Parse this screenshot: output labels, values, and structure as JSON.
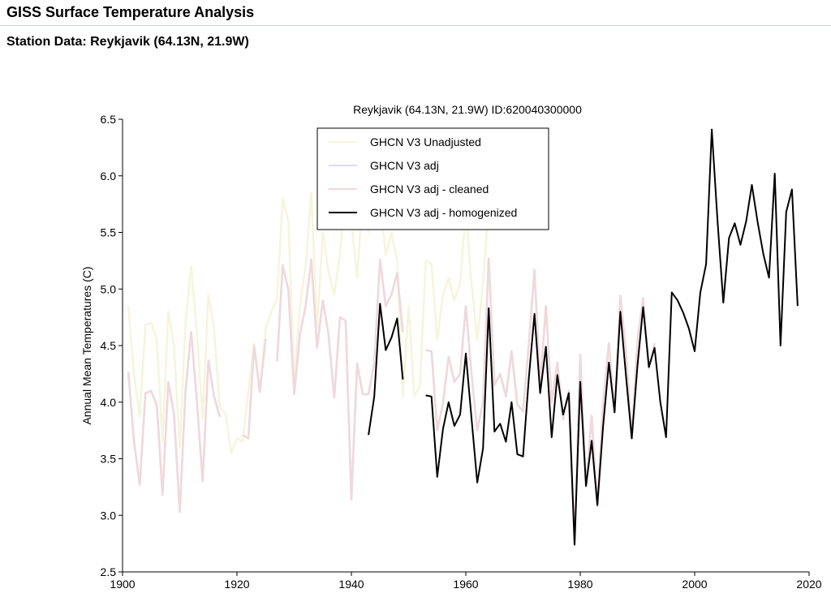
{
  "page": {
    "title": "GISS Surface Temperature Analysis",
    "subtitle": "Station Data: Reykjavik (64.13N, 21.9W)"
  },
  "chart_data": {
    "type": "line",
    "title": "Reykjavik (64.13N, 21.9W) ID:620040300000",
    "xlabel": "",
    "ylabel": "Annual Mean Temperatures (C)",
    "xlim": [
      1900,
      2020
    ],
    "ylim": [
      2.5,
      6.5
    ],
    "xticks": [
      "1900",
      "1920",
      "1940",
      "1960",
      "1980",
      "2000",
      "2020"
    ],
    "yticks": [
      "2.5",
      "3.0",
      "3.5",
      "4.0",
      "4.5",
      "5.0",
      "5.5",
      "6.0",
      "6.5"
    ],
    "grid": false,
    "legend_position": "top-center",
    "series": [
      {
        "name": "GHCN V3 Unadjusted",
        "color": "#f5f5dc",
        "values": [
          [
            1901,
            4.85
          ],
          [
            1902,
            4.25
          ],
          [
            1903,
            3.87
          ],
          [
            1904,
            4.68
          ],
          [
            1905,
            4.7
          ],
          [
            1906,
            4.55
          ],
          [
            1907,
            3.65
          ],
          [
            1908,
            4.8
          ],
          [
            1909,
            4.5
          ],
          [
            1910,
            3.6
          ],
          [
            1911,
            4.7
          ],
          [
            1912,
            5.2
          ],
          [
            1913,
            4.6
          ],
          [
            1914,
            3.85
          ],
          [
            1915,
            4.95
          ],
          [
            1916,
            4.65
          ],
          [
            1917,
            3.95
          ],
          [
            1918,
            3.9
          ],
          [
            1919,
            3.55
          ],
          [
            1920,
            3.68
          ],
          [
            1921,
            3.65
          ],
          [
            1922,
            4.1
          ],
          [
            1923,
            4.52
          ],
          [
            1924,
            4.1
          ],
          [
            1925,
            4.65
          ],
          [
            1926,
            4.8
          ],
          [
            1927,
            4.92
          ],
          [
            1928,
            5.8
          ],
          [
            1929,
            5.6
          ],
          [
            1930,
            4.2
          ],
          [
            1931,
            4.85
          ],
          [
            1932,
            5.2
          ],
          [
            1933,
            5.85
          ],
          [
            1934,
            4.65
          ],
          [
            1935,
            5.5
          ],
          [
            1936,
            5.15
          ],
          [
            1937,
            4.95
          ],
          [
            1938,
            5.3
          ],
          [
            1939,
            5.9
          ],
          [
            1940,
            5.6
          ],
          [
            1941,
            5.1
          ],
          [
            1942,
            5.85
          ],
          [
            1943,
            5.5
          ],
          [
            1944,
            5.85
          ],
          [
            1945,
            5.8
          ],
          [
            1946,
            5.3
          ],
          [
            1947,
            5.5
          ],
          [
            1948,
            5.25
          ],
          [
            1949,
            4.05
          ],
          [
            1950,
            4.85
          ],
          [
            1951,
            4.05
          ],
          [
            1952,
            4.15
          ],
          [
            1953,
            5.25
          ],
          [
            1954,
            5.22
          ],
          [
            1955,
            4.55
          ],
          [
            1956,
            4.95
          ],
          [
            1957,
            5.1
          ],
          [
            1958,
            4.9
          ],
          [
            1959,
            5.05
          ],
          [
            1960,
            5.7
          ],
          [
            1961,
            5.05
          ],
          [
            1962,
            4.55
          ],
          [
            1963,
            5.05
          ],
          [
            1964,
            5.75
          ]
        ]
      },
      {
        "name": "GHCN V3 adj",
        "color": "#dcdcf5",
        "values": [
          [
            1901,
            4.27
          ],
          [
            1902,
            3.65
          ],
          [
            1903,
            3.27
          ],
          [
            1904,
            4.08
          ],
          [
            1905,
            4.1
          ],
          [
            1906,
            3.97
          ],
          [
            1907,
            3.18
          ],
          [
            1908,
            4.18
          ],
          [
            1909,
            3.9
          ],
          [
            1910,
            3.03
          ],
          [
            1911,
            4.1
          ],
          [
            1912,
            4.62
          ],
          [
            1913,
            4.0
          ],
          [
            1914,
            3.3
          ],
          [
            1915,
            4.37
          ],
          [
            1916,
            4.05
          ],
          [
            1917,
            3.87
          ],
          [
            1921,
            3.71
          ],
          [
            1922,
            3.68
          ],
          [
            1923,
            4.5
          ],
          [
            1924,
            4.09
          ],
          [
            1925,
            4.56
          ],
          [
            1927,
            4.36
          ],
          [
            1928,
            5.21
          ],
          [
            1929,
            4.99
          ],
          [
            1930,
            4.07
          ],
          [
            1931,
            4.6
          ],
          [
            1932,
            4.85
          ],
          [
            1933,
            5.26
          ],
          [
            1934,
            4.48
          ],
          [
            1935,
            4.9
          ],
          [
            1936,
            4.6
          ],
          [
            1937,
            4.04
          ],
          [
            1938,
            4.75
          ],
          [
            1939,
            4.72
          ],
          [
            1940,
            3.14
          ],
          [
            1941,
            4.34
          ],
          [
            1942,
            4.07
          ],
          [
            1943,
            4.07
          ],
          [
            1944,
            4.35
          ],
          [
            1945,
            5.26
          ],
          [
            1946,
            4.85
          ],
          [
            1947,
            4.95
          ],
          [
            1948,
            5.14
          ],
          [
            1949,
            4.62
          ],
          [
            1953,
            4.46
          ],
          [
            1954,
            4.45
          ],
          [
            1955,
            3.75
          ],
          [
            1956,
            3.99
          ],
          [
            1957,
            4.4
          ],
          [
            1958,
            4.18
          ],
          [
            1959,
            4.25
          ],
          [
            1960,
            4.85
          ],
          [
            1961,
            4.25
          ],
          [
            1962,
            3.75
          ],
          [
            1963,
            4.0
          ],
          [
            1964,
            5.27
          ],
          [
            1965,
            4.15
          ],
          [
            1966,
            4.25
          ],
          [
            1967,
            4.05
          ],
          [
            1968,
            4.45
          ],
          [
            1969,
            3.98
          ],
          [
            1970,
            3.92
          ],
          [
            1971,
            4.5
          ],
          [
            1972,
            5.17
          ],
          [
            1973,
            4.15
          ],
          [
            1974,
            4.85
          ],
          [
            1975,
            4.0
          ],
          [
            1976,
            4.35
          ],
          [
            1977,
            3.85
          ],
          [
            1978,
            4.1
          ],
          [
            1979,
            2.75
          ],
          [
            1980,
            4.42
          ],
          [
            1981,
            3.25
          ],
          [
            1982,
            3.88
          ],
          [
            1983,
            3.08
          ],
          [
            1984,
            4.0
          ],
          [
            1985,
            4.52
          ],
          [
            1986,
            3.91
          ],
          [
            1987,
            4.94
          ],
          [
            1988,
            4.45
          ],
          [
            1989,
            3.68
          ],
          [
            1990,
            4.55
          ],
          [
            1991,
            4.92
          ],
          [
            1992,
            4.3
          ],
          [
            1993,
            4.52
          ]
        ]
      },
      {
        "name": "GHCN V3 adj - cleaned",
        "color": "#f0d8dc",
        "values": [
          [
            1901,
            4.27
          ],
          [
            1902,
            3.65
          ],
          [
            1903,
            3.27
          ],
          [
            1904,
            4.08
          ],
          [
            1905,
            4.1
          ],
          [
            1906,
            3.97
          ],
          [
            1907,
            3.18
          ],
          [
            1908,
            4.18
          ],
          [
            1909,
            3.9
          ],
          [
            1910,
            3.03
          ],
          [
            1911,
            4.1
          ],
          [
            1912,
            4.62
          ],
          [
            1913,
            4.0
          ],
          [
            1914,
            3.3
          ],
          [
            1915,
            4.37
          ],
          [
            1916,
            4.05
          ],
          [
            1917,
            3.87
          ],
          [
            1921,
            3.71
          ],
          [
            1922,
            3.68
          ],
          [
            1923,
            4.5
          ],
          [
            1924,
            4.09
          ],
          [
            1925,
            4.56
          ],
          [
            1927,
            4.36
          ],
          [
            1928,
            5.21
          ],
          [
            1929,
            4.99
          ],
          [
            1930,
            4.07
          ],
          [
            1931,
            4.6
          ],
          [
            1932,
            4.85
          ],
          [
            1933,
            5.26
          ],
          [
            1934,
            4.48
          ],
          [
            1935,
            4.9
          ],
          [
            1936,
            4.6
          ],
          [
            1937,
            4.04
          ],
          [
            1938,
            4.75
          ],
          [
            1939,
            4.72
          ],
          [
            1940,
            3.14
          ],
          [
            1941,
            4.34
          ],
          [
            1942,
            4.07
          ],
          [
            1943,
            4.07
          ],
          [
            1944,
            4.35
          ],
          [
            1945,
            5.26
          ],
          [
            1946,
            4.85
          ],
          [
            1947,
            4.95
          ],
          [
            1948,
            5.14
          ],
          [
            1949,
            4.62
          ],
          [
            1953,
            4.46
          ],
          [
            1954,
            4.45
          ],
          [
            1955,
            3.75
          ],
          [
            1956,
            3.99
          ],
          [
            1957,
            4.4
          ],
          [
            1958,
            4.18
          ],
          [
            1959,
            4.25
          ],
          [
            1960,
            4.85
          ],
          [
            1961,
            4.25
          ],
          [
            1962,
            3.75
          ],
          [
            1963,
            4.0
          ],
          [
            1964,
            5.27
          ],
          [
            1965,
            4.15
          ],
          [
            1966,
            4.25
          ],
          [
            1967,
            4.05
          ],
          [
            1968,
            4.45
          ],
          [
            1969,
            3.98
          ],
          [
            1970,
            3.92
          ],
          [
            1971,
            4.5
          ],
          [
            1972,
            5.17
          ],
          [
            1973,
            4.15
          ],
          [
            1974,
            4.85
          ],
          [
            1975,
            4.0
          ],
          [
            1976,
            4.35
          ],
          [
            1977,
            3.85
          ],
          [
            1978,
            4.1
          ],
          [
            1979,
            2.75
          ],
          [
            1980,
            4.42
          ],
          [
            1981,
            3.25
          ],
          [
            1982,
            3.88
          ],
          [
            1983,
            3.08
          ],
          [
            1984,
            4.0
          ],
          [
            1985,
            4.52
          ],
          [
            1986,
            3.91
          ],
          [
            1987,
            4.94
          ],
          [
            1988,
            4.45
          ],
          [
            1989,
            3.68
          ],
          [
            1990,
            4.55
          ],
          [
            1991,
            4.92
          ],
          [
            1992,
            4.3
          ],
          [
            1993,
            4.52
          ]
        ]
      },
      {
        "name": "GHCN V3 adj - homogenized",
        "color": "#000000",
        "values": [
          [
            1943,
            3.71
          ],
          [
            1944,
            4.05
          ],
          [
            1945,
            4.87
          ],
          [
            1946,
            4.46
          ],
          [
            1947,
            4.57
          ],
          [
            1948,
            4.74
          ],
          [
            1949,
            4.2
          ],
          [
            1953,
            4.06
          ],
          [
            1954,
            4.05
          ],
          [
            1955,
            3.34
          ],
          [
            1956,
            3.76
          ],
          [
            1957,
            4.0
          ],
          [
            1958,
            3.79
          ],
          [
            1959,
            3.89
          ],
          [
            1960,
            4.43
          ],
          [
            1961,
            3.86
          ],
          [
            1962,
            3.29
          ],
          [
            1963,
            3.59
          ],
          [
            1964,
            4.83
          ],
          [
            1965,
            3.74
          ],
          [
            1966,
            3.81
          ],
          [
            1967,
            3.65
          ],
          [
            1968,
            4.0
          ],
          [
            1969,
            3.54
          ],
          [
            1970,
            3.52
          ],
          [
            1971,
            4.2
          ],
          [
            1972,
            4.78
          ],
          [
            1973,
            4.08
          ],
          [
            1974,
            4.49
          ],
          [
            1975,
            3.69
          ],
          [
            1976,
            4.24
          ],
          [
            1977,
            3.89
          ],
          [
            1978,
            4.08
          ],
          [
            1979,
            2.74
          ],
          [
            1980,
            4.18
          ],
          [
            1981,
            3.26
          ],
          [
            1982,
            3.66
          ],
          [
            1983,
            3.09
          ],
          [
            1984,
            3.79
          ],
          [
            1985,
            4.35
          ],
          [
            1986,
            3.91
          ],
          [
            1987,
            4.8
          ],
          [
            1988,
            4.23
          ],
          [
            1989,
            3.68
          ],
          [
            1990,
            4.32
          ],
          [
            1991,
            4.84
          ],
          [
            1992,
            4.31
          ],
          [
            1993,
            4.48
          ],
          [
            1994,
            4.0
          ],
          [
            1995,
            3.69
          ],
          [
            1996,
            4.97
          ],
          [
            1997,
            4.9
          ],
          [
            1998,
            4.79
          ],
          [
            1999,
            4.65
          ],
          [
            2000,
            4.45
          ],
          [
            2001,
            4.97
          ],
          [
            2002,
            5.22
          ],
          [
            2003,
            6.41
          ],
          [
            2004,
            5.6
          ],
          [
            2005,
            4.88
          ],
          [
            2006,
            5.45
          ],
          [
            2007,
            5.58
          ],
          [
            2008,
            5.39
          ],
          [
            2009,
            5.6
          ],
          [
            2010,
            5.92
          ],
          [
            2011,
            5.59
          ],
          [
            2012,
            5.31
          ],
          [
            2013,
            5.1
          ],
          [
            2014,
            6.02
          ],
          [
            2015,
            4.5
          ],
          [
            2016,
            5.68
          ],
          [
            2017,
            5.88
          ],
          [
            2018,
            4.85
          ]
        ]
      }
    ]
  }
}
